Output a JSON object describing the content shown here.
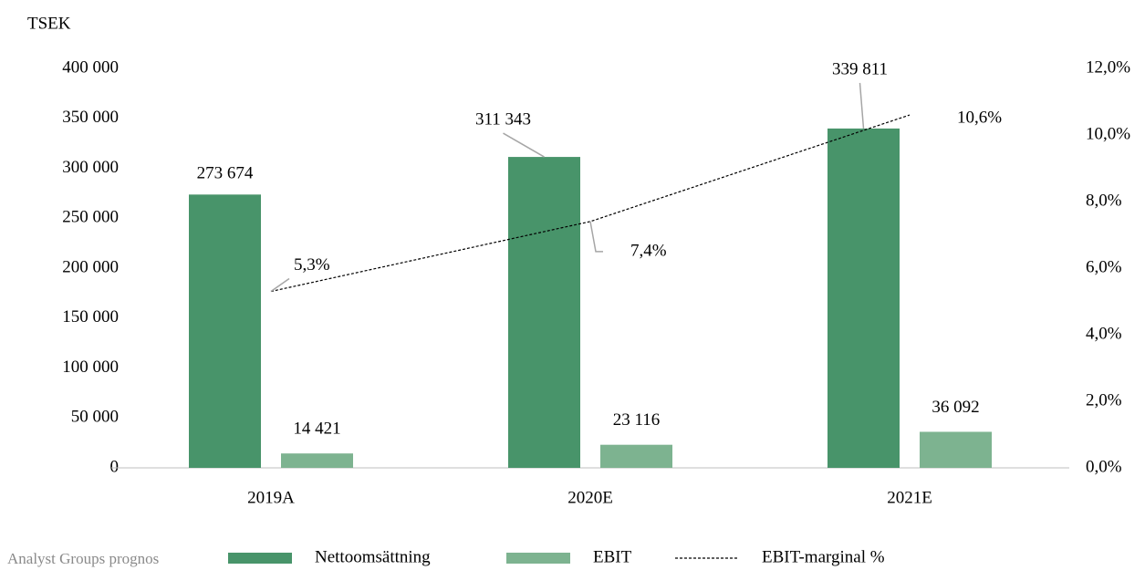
{
  "chart_data": {
    "type": "bar",
    "y_axis_label": "TSEK",
    "source": "Analyst Groups prognos",
    "categories": [
      "2019A",
      "2020E",
      "2021E"
    ],
    "series": [
      {
        "name": "Nettoomsättning",
        "color": "#48946a",
        "values": [
          273674,
          311343,
          339811
        ],
        "value_labels": [
          "273 674",
          "311 343",
          "339 811"
        ]
      },
      {
        "name": "EBIT",
        "color": "#7db390",
        "values": [
          14421,
          23116,
          36092
        ],
        "value_labels": [
          "14 421",
          "23 116",
          "36 092"
        ]
      },
      {
        "name": "EBIT-marginal %",
        "type": "line",
        "axis": "y2",
        "color": "#000000",
        "values": [
          5.3,
          7.4,
          10.6
        ],
        "value_labels": [
          "5,3%",
          "7,4%",
          "10,6%"
        ]
      }
    ],
    "ylim": [
      0,
      400000
    ],
    "yticks": [
      {
        "value": 0,
        "label": "0"
      },
      {
        "value": 50000,
        "label": "50 000"
      },
      {
        "value": 100000,
        "label": "100 000"
      },
      {
        "value": 150000,
        "label": "150 000"
      },
      {
        "value": 200000,
        "label": "200 000"
      },
      {
        "value": 250000,
        "label": "250 000"
      },
      {
        "value": 300000,
        "label": "300 000"
      },
      {
        "value": 350000,
        "label": "350 000"
      },
      {
        "value": 400000,
        "label": "400 000"
      }
    ],
    "y2lim": [
      0,
      12
    ],
    "y2ticks": [
      {
        "value": 0,
        "label": "0,0%"
      },
      {
        "value": 2,
        "label": "2,0%"
      },
      {
        "value": 4,
        "label": "4,0%"
      },
      {
        "value": 6,
        "label": "6,0%"
      },
      {
        "value": 8,
        "label": "8,0%"
      },
      {
        "value": 10,
        "label": "10,0%"
      },
      {
        "value": 12,
        "label": "12,0%"
      }
    ],
    "grid": false
  }
}
